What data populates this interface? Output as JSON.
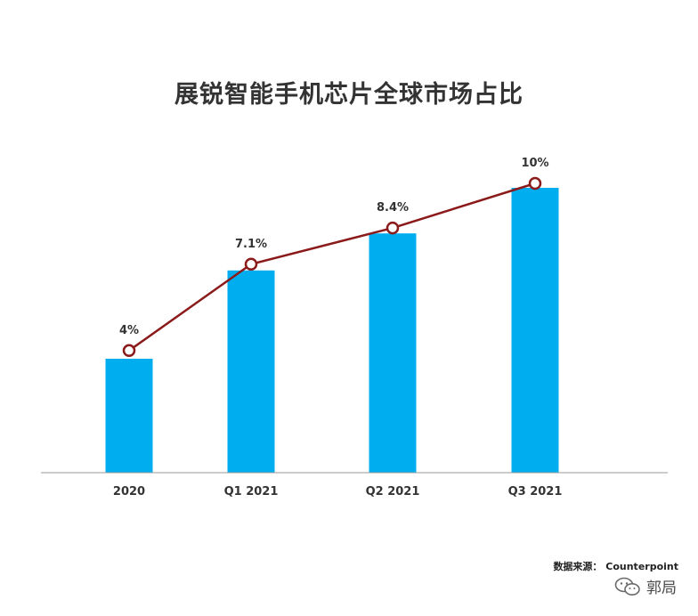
{
  "title": "展锐智能手机芯片全球市场占比",
  "source": "数据来源： Counterpoint",
  "watermark": "郭局",
  "colors": {
    "bar": "#00aeef",
    "line": "#8b1a1a",
    "axis": "#9a9a9a"
  },
  "chart_data": {
    "type": "bar",
    "title": "展锐智能手机芯片全球市场占比",
    "categories": [
      "2020",
      "Q1 2021",
      "Q2 2021",
      "Q3 2021"
    ],
    "series": [
      {
        "type": "bar",
        "values": [
          4,
          7.1,
          8.4,
          10
        ]
      },
      {
        "type": "line",
        "values": [
          4,
          7.1,
          8.4,
          10
        ],
        "labels": [
          "4%",
          "7.1%",
          "8.4%",
          "10%"
        ],
        "marker": "hollow-circle"
      }
    ],
    "grid": false,
    "legend": "none"
  }
}
